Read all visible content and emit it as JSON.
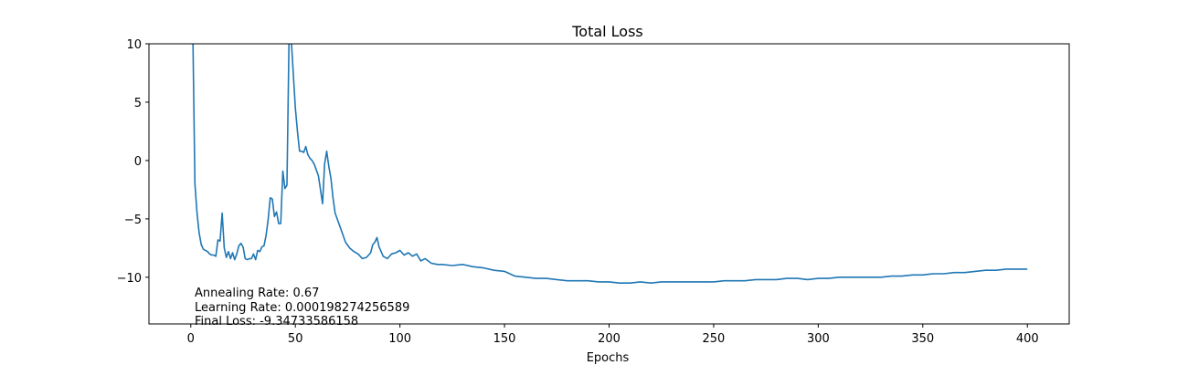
{
  "chart_data": {
    "type": "line",
    "title": "Total Loss",
    "xlabel": "Epochs",
    "ylabel": "",
    "xlim": [
      -20,
      420
    ],
    "ylim": [
      -14,
      10
    ],
    "xticks": [
      0,
      50,
      100,
      150,
      200,
      250,
      300,
      350,
      400
    ],
    "yticks": [
      10,
      5,
      0,
      -5,
      -10
    ],
    "ytick_labels": [
      "10",
      "5",
      "0",
      "−5",
      "−10"
    ],
    "grid": false,
    "color": "#1f77b4",
    "annotations": [
      "Annealing Rate: 0.67",
      "Learning Rate: 0.000198274256589",
      "Final Loss: -9.34733586158"
    ],
    "series": [
      {
        "x": [
          1,
          2,
          3,
          4,
          5,
          6,
          7,
          8,
          9,
          10,
          11,
          12,
          13,
          14,
          15,
          16,
          17,
          18,
          19,
          20,
          21,
          22,
          23,
          24,
          25,
          26,
          27,
          28,
          29,
          30,
          31,
          32,
          33,
          34,
          35,
          36,
          37,
          38,
          39,
          40,
          41,
          42,
          43,
          44,
          45,
          46,
          47,
          48,
          49,
          50,
          51,
          52,
          53,
          54,
          55,
          56,
          57,
          58,
          59,
          60,
          61,
          62,
          63,
          64,
          65,
          66,
          67,
          68,
          69,
          70,
          72,
          74,
          76,
          78,
          80,
          82,
          84,
          86,
          87,
          88,
          89,
          90,
          92,
          94,
          96,
          98,
          100,
          102,
          104,
          106,
          108,
          110,
          112,
          115,
          118,
          120,
          125,
          130,
          135,
          140,
          145,
          150,
          155,
          160,
          165,
          170,
          175,
          180,
          185,
          190,
          195,
          200,
          205,
          210,
          215,
          220,
          225,
          230,
          235,
          240,
          245,
          250,
          255,
          260,
          265,
          270,
          275,
          280,
          285,
          290,
          295,
          300,
          305,
          310,
          315,
          320,
          325,
          330,
          335,
          340,
          345,
          350,
          355,
          360,
          365,
          370,
          375,
          380,
          385,
          390,
          395,
          400
        ],
        "values": [
          10.5,
          -2.0,
          -4.5,
          -6.2,
          -7.2,
          -7.6,
          -7.7,
          -7.8,
          -8.0,
          -8.1,
          -8.1,
          -8.2,
          -6.8,
          -6.9,
          -4.5,
          -7.5,
          -8.3,
          -7.8,
          -8.4,
          -7.9,
          -8.5,
          -8.0,
          -7.3,
          -7.1,
          -7.4,
          -8.4,
          -8.5,
          -8.4,
          -8.4,
          -8.0,
          -8.5,
          -7.7,
          -7.8,
          -7.4,
          -7.3,
          -6.4,
          -5.0,
          -3.2,
          -3.3,
          -4.8,
          -4.4,
          -5.4,
          -5.4,
          -0.9,
          -2.4,
          -2.1,
          10.5,
          10.5,
          7.5,
          4.5,
          2.5,
          0.8,
          0.8,
          0.7,
          1.2,
          0.5,
          0.2,
          0.0,
          -0.3,
          -0.8,
          -1.3,
          -2.5,
          -3.7,
          -0.3,
          0.8,
          -0.5,
          -1.5,
          -3.2,
          -4.5,
          -5.0,
          -6.0,
          -7.0,
          -7.5,
          -7.8,
          -8.0,
          -8.4,
          -8.3,
          -7.9,
          -7.2,
          -7.0,
          -6.6,
          -7.4,
          -8.2,
          -8.4,
          -8.0,
          -7.9,
          -7.7,
          -8.1,
          -7.9,
          -8.2,
          -8.0,
          -8.6,
          -8.4,
          -8.8,
          -8.9,
          -8.9,
          -9.0,
          -8.9,
          -9.1,
          -9.2,
          -9.4,
          -9.5,
          -9.9,
          -10.0,
          -10.1,
          -10.1,
          -10.2,
          -10.3,
          -10.3,
          -10.3,
          -10.4,
          -10.4,
          -10.5,
          -10.5,
          -10.4,
          -10.5,
          -10.4,
          -10.4,
          -10.4,
          -10.4,
          -10.4,
          -10.4,
          -10.3,
          -10.3,
          -10.3,
          -10.2,
          -10.2,
          -10.2,
          -10.1,
          -10.1,
          -10.2,
          -10.1,
          -10.1,
          -10.0,
          -10.0,
          -10.0,
          -10.0,
          -10.0,
          -9.9,
          -9.9,
          -9.8,
          -9.8,
          -9.7,
          -9.7,
          -9.6,
          -9.6,
          -9.5,
          -9.4,
          -9.4,
          -9.3,
          -9.3,
          -9.3
        ]
      }
    ]
  }
}
